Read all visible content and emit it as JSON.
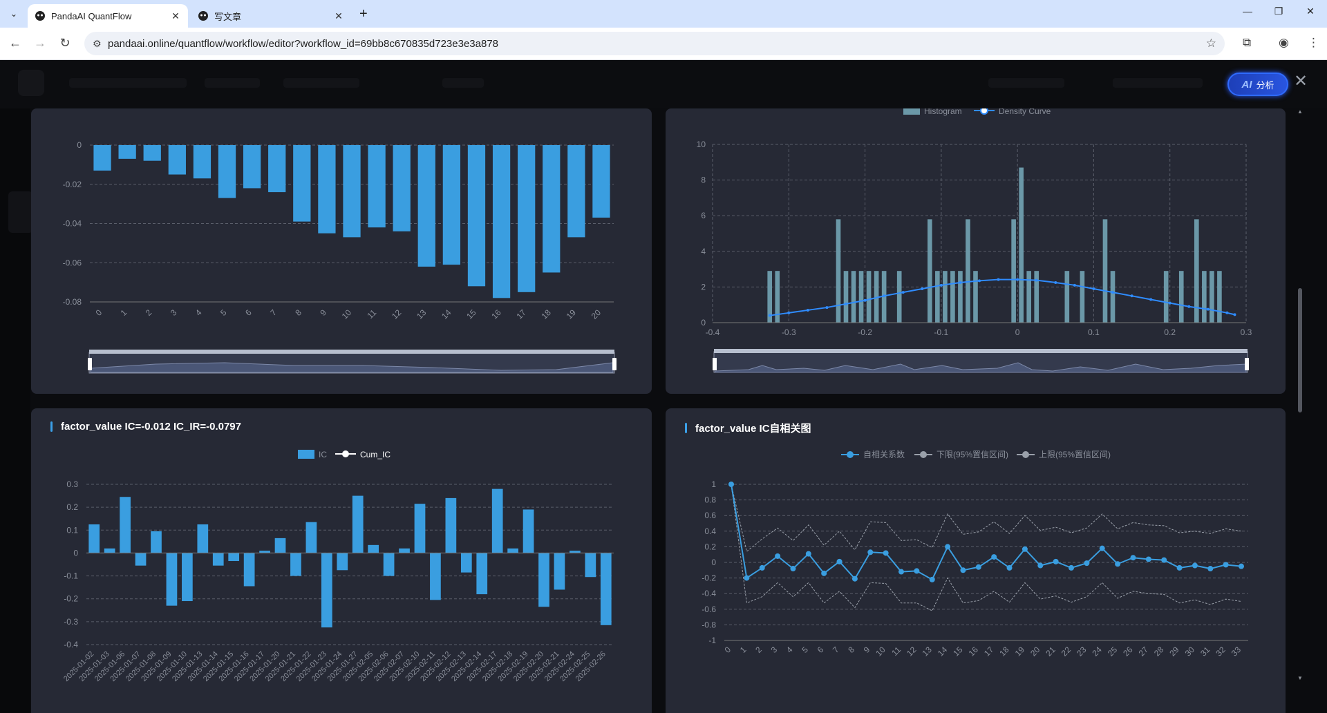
{
  "browser": {
    "tabs": [
      {
        "title": "PandaAI QuantFlow",
        "active": true
      },
      {
        "title": "写文章",
        "active": false
      }
    ],
    "url": "pandaai.online/quantflow/workflow/editor?workflow_id=69bb8c670835d723e3e3a878"
  },
  "app": {
    "ai_button": {
      "mark": "AI",
      "label": "分析"
    }
  },
  "colors": {
    "bar": "#3a9ee0",
    "density": "#2f8cff",
    "hist": "#6b98a8",
    "panel": "#262935",
    "grid": "#5a5e6a"
  },
  "chart_data": [
    {
      "type": "bar",
      "categories": [
        "0",
        "1",
        "2",
        "3",
        "4",
        "5",
        "6",
        "7",
        "8",
        "9",
        "10",
        "11",
        "12",
        "13",
        "14",
        "15",
        "16",
        "17",
        "18",
        "19",
        "20"
      ],
      "values": [
        -0.013,
        -0.007,
        -0.008,
        -0.015,
        -0.017,
        -0.027,
        -0.022,
        -0.024,
        -0.039,
        -0.045,
        -0.047,
        -0.042,
        -0.044,
        -0.062,
        -0.061,
        -0.072,
        -0.078,
        -0.075,
        -0.065,
        -0.047,
        -0.037
      ],
      "ylim": [
        -0.08,
        0
      ],
      "yticks": [
        "0",
        "-0.02",
        "-0.04",
        "-0.06",
        "-0.08"
      ],
      "grid": true,
      "datazoom": true
    },
    {
      "type": "bar",
      "legend": [
        "Histogram",
        "Density Curve"
      ],
      "xticks": [
        "-0.4",
        "-0.3",
        "-0.2",
        "-0.1",
        "0",
        "0.1",
        "0.2",
        "0.3"
      ],
      "yticks": [
        "0",
        "2",
        "4",
        "6",
        "8",
        "10"
      ],
      "xlim": [
        -0.4,
        0.3
      ],
      "ylim": [
        0,
        10
      ],
      "histogram": {
        "x": [
          -0.325,
          -0.315,
          -0.235,
          -0.225,
          -0.215,
          -0.205,
          -0.195,
          -0.185,
          -0.175,
          -0.155,
          -0.115,
          -0.105,
          -0.095,
          -0.085,
          -0.075,
          -0.065,
          -0.055,
          -0.005,
          0.005,
          0.015,
          0.025,
          0.065,
          0.085,
          0.115,
          0.125,
          0.195,
          0.215,
          0.235,
          0.245,
          0.255,
          0.265
        ],
        "values": [
          2.9,
          2.9,
          5.8,
          2.9,
          2.9,
          2.9,
          2.9,
          2.9,
          2.9,
          2.9,
          5.8,
          2.9,
          2.9,
          2.9,
          2.9,
          5.8,
          2.9,
          5.8,
          8.7,
          2.9,
          2.9,
          2.9,
          2.9,
          5.8,
          2.9,
          2.9,
          2.9,
          5.8,
          2.9,
          2.9,
          2.9
        ]
      },
      "density": {
        "x": [
          -0.325,
          -0.3,
          -0.275,
          -0.25,
          -0.225,
          -0.2,
          -0.175,
          -0.15,
          -0.125,
          -0.1,
          -0.075,
          -0.05,
          -0.025,
          0,
          0.025,
          0.05,
          0.075,
          0.1,
          0.125,
          0.15,
          0.175,
          0.2,
          0.225,
          0.25,
          0.275,
          0.285
        ],
        "values": [
          0.4,
          0.55,
          0.7,
          0.85,
          1.05,
          1.25,
          1.5,
          1.7,
          1.9,
          2.1,
          2.25,
          2.35,
          2.42,
          2.42,
          2.38,
          2.25,
          2.1,
          1.9,
          1.7,
          1.5,
          1.3,
          1.1,
          0.9,
          0.75,
          0.55,
          0.45
        ]
      },
      "datazoom": true
    },
    {
      "type": "bar",
      "title": "factor_value IC=-0.012 IC_IR=-0.0797",
      "legend": [
        "IC",
        "Cum_IC"
      ],
      "categories": [
        "2025-01-02",
        "2025-01-03",
        "2025-01-06",
        "2025-01-07",
        "2025-01-08",
        "2025-01-09",
        "2025-01-10",
        "2025-01-13",
        "2025-01-14",
        "2025-01-15",
        "2025-01-16",
        "2025-01-17",
        "2025-01-20",
        "2025-01-21",
        "2025-01-22",
        "2025-01-23",
        "2025-01-24",
        "2025-01-27",
        "2025-02-05",
        "2025-02-06",
        "2025-02-07",
        "2025-02-10",
        "2025-02-11",
        "2025-02-12",
        "2025-02-13",
        "2025-02-14",
        "2025-02-17",
        "2025-02-18",
        "2025-02-19",
        "2025-02-20",
        "2025-02-21",
        "2025-02-24",
        "2025-02-25",
        "2025-02-26"
      ],
      "values": [
        0.125,
        0.02,
        0.245,
        -0.055,
        0.095,
        -0.23,
        -0.21,
        0.125,
        -0.055,
        -0.035,
        -0.145,
        0.01,
        0.065,
        -0.1,
        0.135,
        -0.325,
        -0.075,
        0.25,
        0.035,
        -0.1,
        0.02,
        0.215,
        -0.205,
        0.24,
        -0.085,
        -0.18,
        0.28,
        0.02,
        0.19,
        -0.235,
        -0.16,
        0.01,
        -0.105,
        -0.315
      ],
      "yticks": [
        "0.3",
        "0.2",
        "0.1",
        "0",
        "-0.1",
        "-0.2",
        "-0.3",
        "-0.4"
      ],
      "ylim": [
        -0.4,
        0.3
      ]
    },
    {
      "type": "line",
      "title": "factor_value IC自相关图",
      "legend": [
        "自相关系数",
        "下限(95%置信区间)",
        "上限(95%置信区间)"
      ],
      "x": [
        0,
        1,
        2,
        3,
        4,
        5,
        6,
        7,
        8,
        9,
        10,
        11,
        12,
        13,
        14,
        15,
        16,
        17,
        18,
        19,
        20,
        21,
        22,
        23,
        24,
        25,
        26,
        27,
        28,
        29,
        30,
        31,
        32,
        33
      ],
      "series": [
        {
          "name": "自相关系数",
          "values": [
            1,
            -0.2,
            -0.07,
            0.08,
            -0.08,
            0.11,
            -0.14,
            0.01,
            -0.21,
            0.13,
            0.12,
            -0.12,
            -0.11,
            -0.22,
            0.2,
            -0.1,
            -0.06,
            0.07,
            -0.07,
            0.17,
            -0.04,
            0.01,
            -0.07,
            -0.01,
            0.18,
            -0.02,
            0.06,
            0.04,
            0.03,
            -0.07,
            -0.04,
            -0.08,
            -0.03,
            -0.05
          ]
        },
        {
          "name": "下限(95%置信区间)",
          "values": [
            1,
            -0.52,
            -0.44,
            -0.26,
            -0.44,
            -0.26,
            -0.52,
            -0.37,
            -0.58,
            -0.26,
            -0.27,
            -0.52,
            -0.52,
            -0.62,
            -0.2,
            -0.52,
            -0.49,
            -0.37,
            -0.51,
            -0.26,
            -0.47,
            -0.43,
            -0.51,
            -0.44,
            -0.26,
            -0.46,
            -0.37,
            -0.4,
            -0.41,
            -0.52,
            -0.48,
            -0.54,
            -0.47,
            -0.5
          ]
        },
        {
          "name": "上限(95%置信区间)",
          "values": [
            1,
            0.14,
            0.3,
            0.44,
            0.28,
            0.48,
            0.22,
            0.4,
            0.16,
            0.52,
            0.51,
            0.28,
            0.29,
            0.19,
            0.62,
            0.36,
            0.39,
            0.52,
            0.37,
            0.6,
            0.41,
            0.45,
            0.38,
            0.44,
            0.62,
            0.43,
            0.51,
            0.48,
            0.47,
            0.38,
            0.4,
            0.37,
            0.43,
            0.4
          ]
        }
      ],
      "yticks": [
        "1",
        "0.8",
        "0.6",
        "0.4",
        "0.2",
        "0",
        "-0.2",
        "-0.4",
        "-0.6",
        "-0.8",
        "-1"
      ],
      "ylim": [
        -1,
        1
      ]
    }
  ]
}
